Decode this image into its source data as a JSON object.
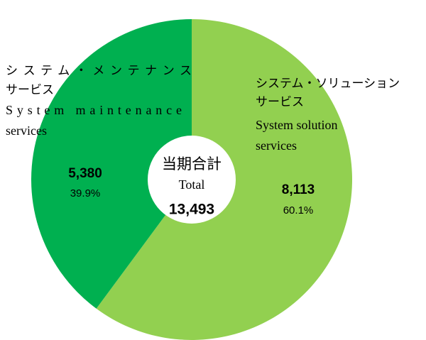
{
  "chart_data": {
    "type": "donut",
    "labels": [
      {
        "ja": [
          "システム・ソリューション",
          "サービス"
        ],
        "en": [
          "System solution",
          "services"
        ]
      },
      {
        "ja": [
          "システム・メンテナンス",
          "サービス"
        ],
        "en": [
          "System maintenance",
          "services"
        ]
      }
    ],
    "values": [
      8113,
      5380
    ],
    "value_labels": [
      "8,113",
      "5,380"
    ],
    "percents": [
      60.1,
      39.9
    ],
    "percent_labels": [
      "60.1%",
      "39.9%"
    ],
    "colors": [
      "#92d050",
      "#00b050"
    ],
    "center_label": [
      "当期合計",
      "Total"
    ],
    "total": 13493,
    "total_label": "13,493"
  }
}
